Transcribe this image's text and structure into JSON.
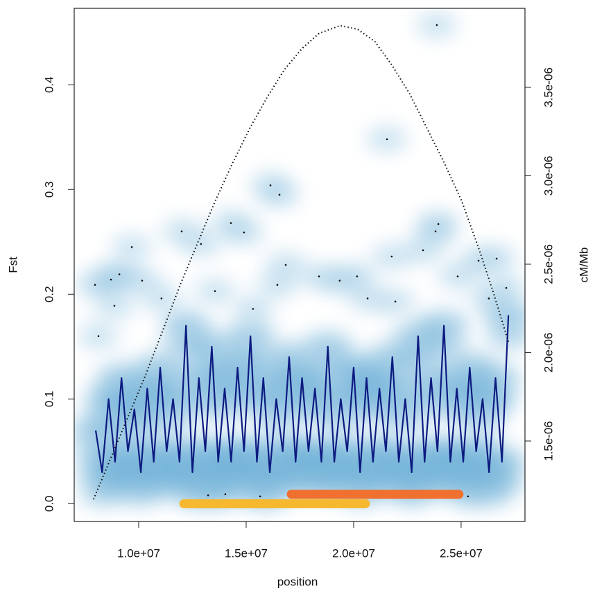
{
  "chart_data": {
    "type": "line",
    "xlabel": "position",
    "ylabel": "Fst",
    "y2label": "cM/Mb",
    "xlim": [
      7000000,
      27970000
    ],
    "ylim": [
      -0.017,
      0.473
    ],
    "y2lim": [
      1.045e-06,
      3.947e-06
    ],
    "xticks": [
      {
        "value": 10000000,
        "label": "1.0e+07"
      },
      {
        "value": 15000000,
        "label": "1.5e+07"
      },
      {
        "value": 20000000,
        "label": "2.0e+07"
      },
      {
        "value": 25000000,
        "label": "2.5e+07"
      }
    ],
    "yticks": [
      {
        "value": 0,
        "label": "0.0"
      },
      0.1,
      0.2,
      0.3,
      0.4
    ],
    "y2ticks": [
      {
        "value": 1.5e-06,
        "label": "1.5e-06"
      },
      {
        "value": 2e-06,
        "label": "2.0e-06"
      },
      {
        "value": 2.5e-06,
        "label": "2.5e-06"
      },
      {
        "value": 3e-06,
        "label": "3.0e-06"
      },
      {
        "value": 3.5e-06,
        "label": "3.5e-06"
      }
    ],
    "density_color": "#6baed6",
    "fst_line": {
      "color": "#0d1a80",
      "x": [
        8000000,
        8300000,
        8600000,
        8900000,
        9200000,
        9500000,
        9800000,
        10100000,
        10400000,
        10700000,
        11000000,
        11300000,
        11600000,
        11900000,
        12200000,
        12500000,
        12800000,
        13100000,
        13400000,
        13700000,
        14000000,
        14300000,
        14600000,
        14900000,
        15200000,
        15500000,
        15800000,
        16100000,
        16400000,
        16700000,
        17000000,
        17300000,
        17600000,
        17900000,
        18200000,
        18500000,
        18800000,
        19100000,
        19400000,
        19700000,
        20000000,
        20300000,
        20600000,
        20900000,
        21200000,
        21500000,
        21800000,
        22100000,
        22400000,
        22700000,
        23000000,
        23300000,
        23600000,
        23900000,
        24200000,
        24500000,
        24800000,
        25100000,
        25400000,
        25700000,
        26000000,
        26300000,
        26600000,
        26900000,
        27200000
      ],
      "values": [
        0.07,
        0.03,
        0.1,
        0.04,
        0.12,
        0.05,
        0.09,
        0.03,
        0.11,
        0.04,
        0.13,
        0.05,
        0.1,
        0.04,
        0.17,
        0.03,
        0.12,
        0.05,
        0.15,
        0.04,
        0.11,
        0.04,
        0.13,
        0.05,
        0.16,
        0.04,
        0.12,
        0.03,
        0.1,
        0.05,
        0.14,
        0.04,
        0.12,
        0.05,
        0.11,
        0.04,
        0.15,
        0.04,
        0.1,
        0.05,
        0.13,
        0.03,
        0.12,
        0.04,
        0.11,
        0.05,
        0.14,
        0.04,
        0.1,
        0.03,
        0.16,
        0.04,
        0.12,
        0.05,
        0.17,
        0.04,
        0.11,
        0.04,
        0.13,
        0.05,
        0.1,
        0.03,
        0.12,
        0.04,
        0.18
      ]
    },
    "recombination": {
      "color": "#111111",
      "axis": "y2",
      "x": [
        7900000,
        8710000,
        9520000,
        10330000,
        11140000,
        11940000,
        12750000,
        13560000,
        14370000,
        15170000,
        15980000,
        16790000,
        17600000,
        18400000,
        19370000,
        20180000,
        20990000,
        21800000,
        22600000,
        23410000,
        24220000,
        25030000,
        25840000,
        26480000,
        27220000
      ],
      "values": [
        1.17e-06,
        1.406e-06,
        1.641e-06,
        1.876e-06,
        2.131e-06,
        2.386e-06,
        2.622e-06,
        2.857e-06,
        3.072e-06,
        3.269e-06,
        3.445e-06,
        3.602e-06,
        3.72e-06,
        3.806e-06,
        3.849e-06,
        3.829e-06,
        3.759e-06,
        3.622e-06,
        3.465e-06,
        3.269e-06,
        3.072e-06,
        2.857e-06,
        2.582e-06,
        2.347e-06,
        2.053e-06
      ]
    },
    "points": {
      "color": "#111111",
      "x": [
        7970000,
        8130000,
        8710000,
        8870000,
        9100000,
        9680000,
        10160000,
        11060000,
        12000000,
        12900000,
        13550000,
        14290000,
        14900000,
        15320000,
        16130000,
        16550000,
        16450000,
        16840000,
        18390000,
        19350000,
        20160000,
        20650000,
        21550000,
        21770000,
        21940000,
        23230000,
        23870000,
        23940000,
        23810000,
        24840000,
        25810000,
        26290000,
        26650000,
        27100000,
        14030000,
        15650000,
        25320000,
        13230000
      ],
      "values": [
        0.209,
        0.16,
        0.214,
        0.189,
        0.219,
        0.245,
        0.213,
        0.196,
        0.26,
        0.248,
        0.203,
        0.268,
        0.259,
        0.186,
        0.304,
        0.295,
        0.209,
        0.228,
        0.217,
        0.213,
        0.217,
        0.196,
        0.348,
        0.236,
        0.193,
        0.242,
        0.457,
        0.267,
        0.26,
        0.217,
        0.232,
        0.196,
        0.234,
        0.206,
        0.009,
        0.007,
        0.007,
        0.008
      ]
    },
    "segments": [
      {
        "x": [
          12100000,
          20550000
        ],
        "y": 0.0,
        "color": "#f5b82e"
      },
      {
        "x": [
          17100000,
          24900000
        ],
        "y": 0.009,
        "color": "#f07030"
      }
    ]
  }
}
